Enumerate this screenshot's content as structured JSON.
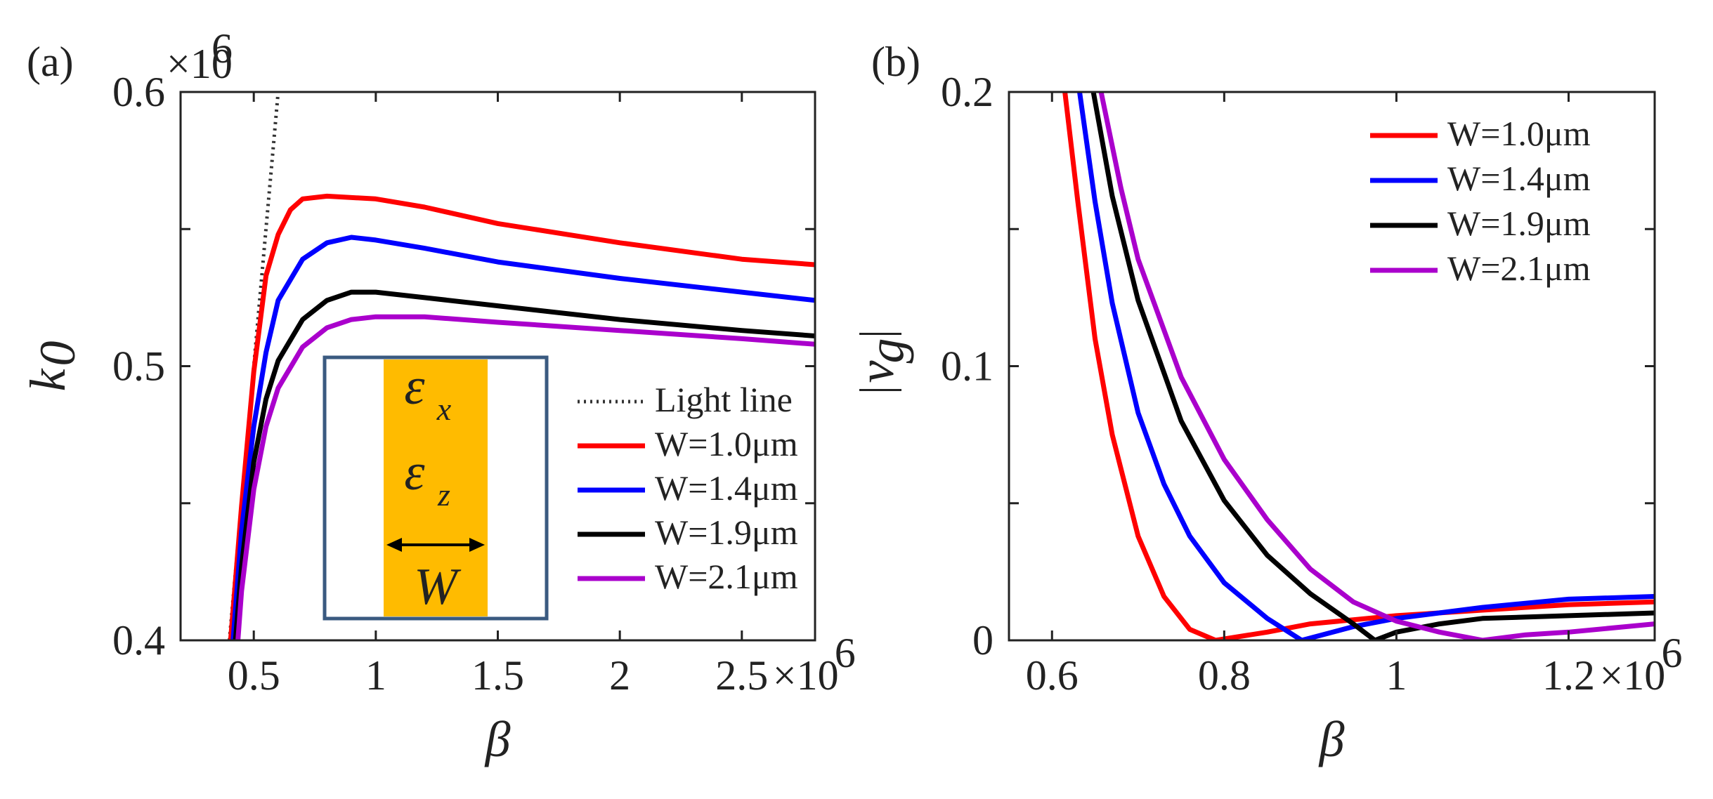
{
  "chart_data": [
    {
      "panel_label": "(a)",
      "type": "line",
      "xlabel": "β",
      "ylabel": "k",
      "ylabel_subscript": "0",
      "x_exponent": "×10",
      "x_exponent_power": "6",
      "y_exponent": "×10",
      "y_exponent_power": "6",
      "xlim": [
        0.2,
        2.8
      ],
      "ylim": [
        0.4,
        0.6
      ],
      "xticks": [
        0.5,
        1,
        1.5,
        2,
        2.5
      ],
      "xtick_labels": [
        "0.5",
        "1",
        "1.5",
        "2",
        "2.5"
      ],
      "yticks": [
        0.4,
        0.45,
        0.5,
        0.55,
        0.6
      ],
      "ytick_labels": [
        "0.4",
        "",
        "0.5",
        "",
        "0.6"
      ],
      "legend_position": "lower-right",
      "series": [
        {
          "name": "Light line",
          "color": "#333333",
          "style": "dotted",
          "x": [
            0.4,
            0.6
          ],
          "y": [
            0.4,
            0.6
          ]
        },
        {
          "name": "W=1.0μm",
          "color": "#ff0000",
          "style": "solid",
          "x": [
            0.405,
            0.45,
            0.5,
            0.55,
            0.6,
            0.65,
            0.7,
            0.8,
            1.0,
            1.2,
            1.5,
            2.0,
            2.5,
            2.8
          ],
          "y": [
            0.4,
            0.449,
            0.498,
            0.533,
            0.548,
            0.557,
            0.561,
            0.562,
            0.561,
            0.558,
            0.552,
            0.545,
            0.539,
            0.537
          ]
        },
        {
          "name": "W=1.4μm",
          "color": "#0000ff",
          "style": "solid",
          "x": [
            0.415,
            0.45,
            0.5,
            0.55,
            0.6,
            0.7,
            0.8,
            0.9,
            1.0,
            1.2,
            1.5,
            2.0,
            2.5,
            2.8
          ],
          "y": [
            0.4,
            0.44,
            0.478,
            0.505,
            0.524,
            0.539,
            0.545,
            0.547,
            0.546,
            0.543,
            0.538,
            0.532,
            0.527,
            0.524
          ]
        },
        {
          "name": "W=1.9μm",
          "color": "#000000",
          "style": "solid",
          "x": [
            0.425,
            0.45,
            0.5,
            0.55,
            0.6,
            0.7,
            0.8,
            0.9,
            1.0,
            1.2,
            1.5,
            2.0,
            2.5,
            2.8
          ],
          "y": [
            0.4,
            0.427,
            0.465,
            0.488,
            0.502,
            0.517,
            0.524,
            0.527,
            0.527,
            0.525,
            0.522,
            0.517,
            0.513,
            0.511
          ]
        },
        {
          "name": "W=2.1μm",
          "color": "#aa00cc",
          "style": "solid",
          "x": [
            0.435,
            0.45,
            0.5,
            0.55,
            0.6,
            0.7,
            0.8,
            0.9,
            1.0,
            1.1,
            1.2,
            1.5,
            2.0,
            2.5,
            2.8
          ],
          "y": [
            0.4,
            0.418,
            0.455,
            0.478,
            0.492,
            0.507,
            0.514,
            0.517,
            0.518,
            0.518,
            0.518,
            0.516,
            0.513,
            0.51,
            0.508
          ]
        }
      ],
      "inset": {
        "eps_x": "ε",
        "eps_x_sub": "x",
        "eps_z": "ε",
        "eps_z_sub": "z",
        "width_label": "W",
        "fill_color": "#ffbb00",
        "border_color": "#3a5a80"
      }
    },
    {
      "panel_label": "(b)",
      "type": "line",
      "xlabel": "β",
      "ylabel": "|v_g|",
      "ylabel_main": "v",
      "ylabel_subscript": "g",
      "x_exponent": "×10",
      "x_exponent_power": "6",
      "xlim": [
        0.55,
        1.3
      ],
      "ylim": [
        0,
        0.2
      ],
      "xticks": [
        0.6,
        0.8,
        1.0,
        1.2
      ],
      "xtick_labels": [
        "0.6",
        "0.8",
        "1",
        "1.2"
      ],
      "yticks": [
        0,
        0.05,
        0.1,
        0.15,
        0.2
      ],
      "ytick_labels": [
        "0",
        "",
        "0.1",
        "",
        "0.2"
      ],
      "legend_position": "top-right",
      "series": [
        {
          "name": "W=1.0μm",
          "color": "#ff0000",
          "style": "solid",
          "x": [
            0.615,
            0.63,
            0.65,
            0.67,
            0.7,
            0.73,
            0.76,
            0.79,
            0.85,
            0.9,
            1.0,
            1.1,
            1.2,
            1.3
          ],
          "y": [
            0.2,
            0.16,
            0.11,
            0.075,
            0.038,
            0.016,
            0.004,
            0.0,
            0.003,
            0.006,
            0.009,
            0.011,
            0.013,
            0.014
          ]
        },
        {
          "name": "W=1.4μm",
          "color": "#0000ff",
          "style": "solid",
          "x": [
            0.632,
            0.65,
            0.67,
            0.7,
            0.73,
            0.76,
            0.8,
            0.85,
            0.89,
            0.95,
            1.0,
            1.1,
            1.2,
            1.3
          ],
          "y": [
            0.2,
            0.16,
            0.123,
            0.083,
            0.057,
            0.038,
            0.021,
            0.008,
            0.0,
            0.005,
            0.008,
            0.012,
            0.015,
            0.016
          ]
        },
        {
          "name": "W=1.9μm",
          "color": "#000000",
          "style": "solid",
          "x": [
            0.648,
            0.67,
            0.7,
            0.75,
            0.8,
            0.85,
            0.9,
            0.95,
            0.975,
            1.0,
            1.05,
            1.1,
            1.2,
            1.3
          ],
          "y": [
            0.2,
            0.162,
            0.124,
            0.08,
            0.051,
            0.031,
            0.017,
            0.006,
            0.0,
            0.003,
            0.006,
            0.008,
            0.009,
            0.01
          ]
        },
        {
          "name": "W=2.1μm",
          "color": "#aa00cc",
          "style": "solid",
          "x": [
            0.657,
            0.68,
            0.7,
            0.75,
            0.8,
            0.85,
            0.9,
            0.95,
            1.0,
            1.05,
            1.1,
            1.15,
            1.2,
            1.3
          ],
          "y": [
            0.2,
            0.165,
            0.139,
            0.096,
            0.066,
            0.044,
            0.026,
            0.014,
            0.007,
            0.003,
            0.0,
            0.002,
            0.003,
            0.006
          ]
        }
      ]
    }
  ]
}
